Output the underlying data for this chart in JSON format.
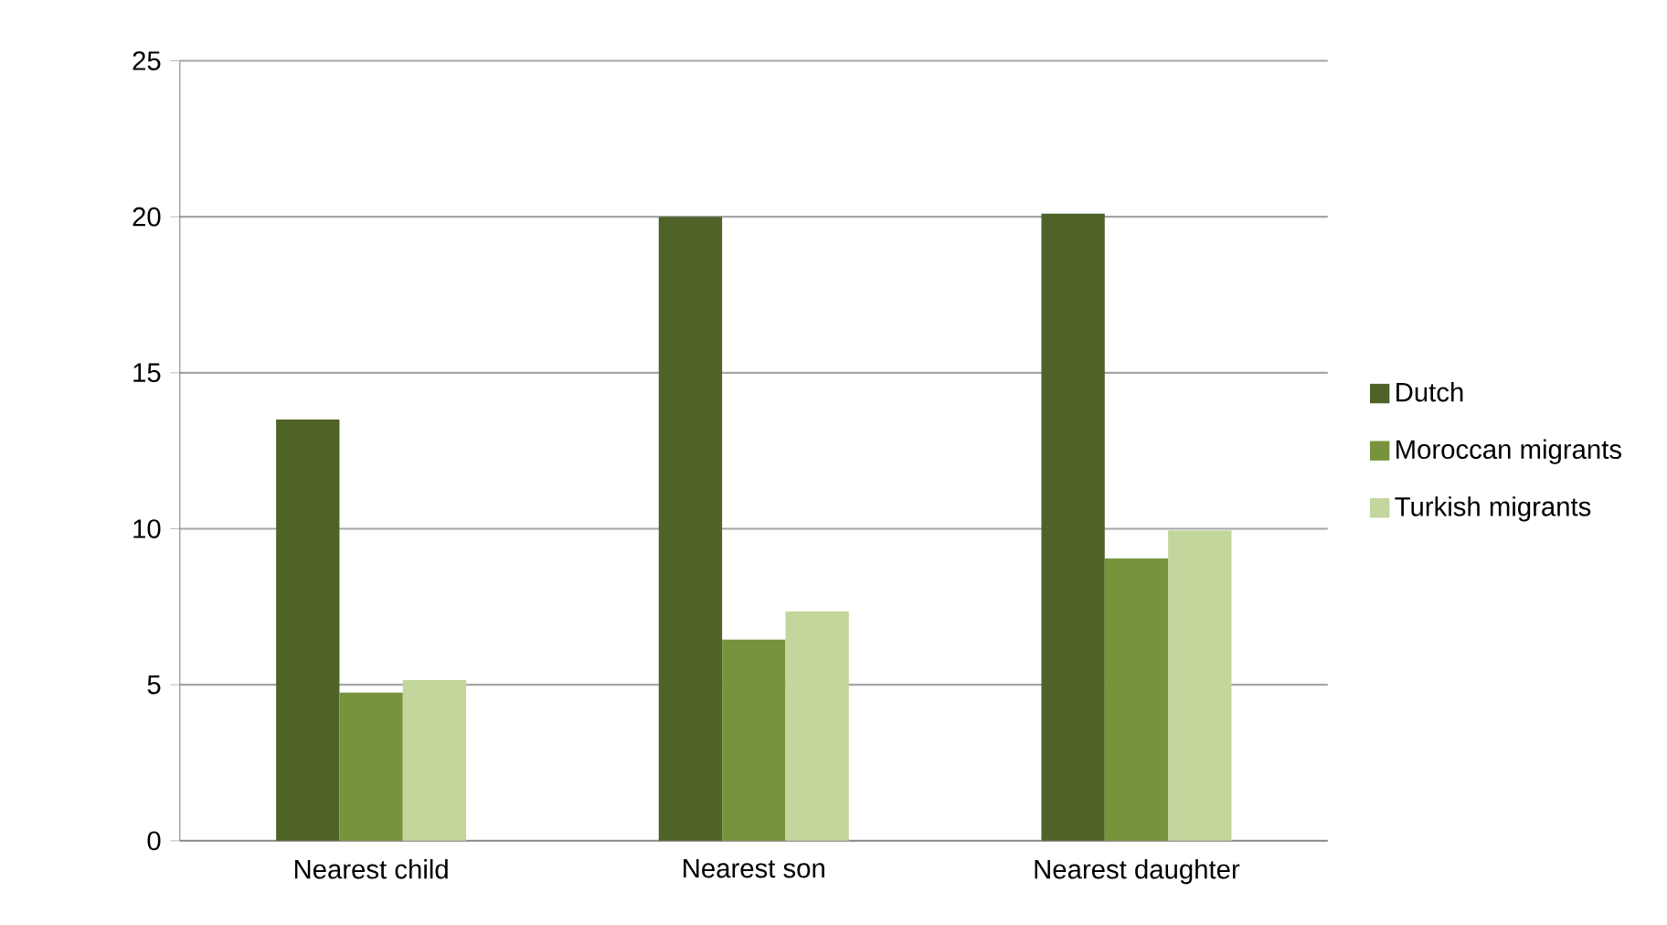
{
  "chart_data": {
    "type": "bar",
    "categories": [
      "Nearest child",
      "Nearest son",
      "Nearest daughter"
    ],
    "series": [
      {
        "name": "Dutch",
        "color": "#4f6228",
        "values": [
          13.5,
          20,
          20.1
        ]
      },
      {
        "name": "Moroccan migrants",
        "color": "#77933c",
        "values": [
          4.75,
          6.45,
          9.05
        ]
      },
      {
        "name": "Turkish migrants",
        "color": "#c3d69b",
        "values": [
          5.15,
          7.35,
          9.95
        ]
      }
    ],
    "ylim": [
      0,
      25
    ],
    "yticks": [
      0,
      5,
      10,
      15,
      20,
      25
    ],
    "grid": "y",
    "legend": "right"
  }
}
